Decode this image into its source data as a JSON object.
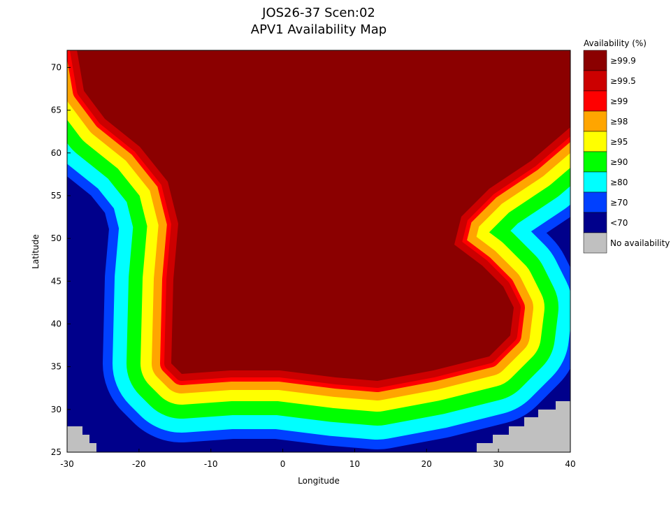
{
  "chart_data": {
    "type": "map",
    "title": [
      "JOS26-37 Scen:02",
      "APV1 Availability Map"
    ],
    "x_label": "Longitude",
    "y_label": "Latitude",
    "xlim": [
      -30,
      40
    ],
    "ylim": [
      25,
      72
    ],
    "xticks": [
      -30,
      -20,
      -10,
      0,
      10,
      20,
      30,
      40
    ],
    "yticks": [
      25,
      30,
      35,
      40,
      45,
      50,
      55,
      60,
      65,
      70
    ],
    "legend_title": "Availability (%)",
    "legend": [
      {
        "label": "≥99.9",
        "color": "#8b0000"
      },
      {
        "label": "≥99.5",
        "color": "#cc0000"
      },
      {
        "label": "≥99",
        "color": "#ff0000"
      },
      {
        "label": "≥98",
        "color": "#ffa500"
      },
      {
        "label": "≥95",
        "color": "#ffff00"
      },
      {
        "label": "≥90",
        "color": "#00ff00"
      },
      {
        "label": "≥80",
        "color": "#00ffff"
      },
      {
        "label": "≥70",
        "color": "#0040ff"
      },
      {
        "label": "<70",
        "color": "#00008b"
      },
      {
        "label": "No availability",
        "color": "#c0c0c0"
      }
    ]
  }
}
